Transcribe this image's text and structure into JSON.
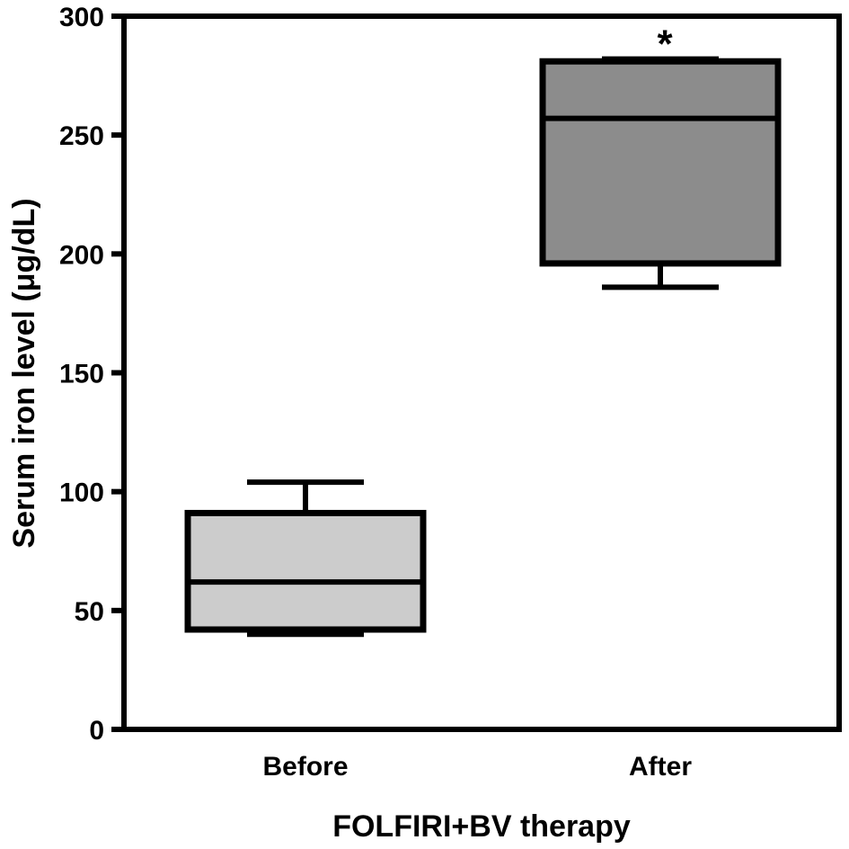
{
  "chart_data": {
    "type": "box",
    "xlabel": "FOLFIRI+BV therapy",
    "ylabel": "Serum iron level (μg/dL)",
    "ylim": [
      0,
      300
    ],
    "yticks": [
      0,
      50,
      100,
      150,
      200,
      250,
      300
    ],
    "categories": [
      "Before",
      "After"
    ],
    "boxes": [
      {
        "category": "Before",
        "min": 40,
        "q1": 42,
        "median": 62,
        "q3": 91,
        "max": 104,
        "fill": "#cccccc"
      },
      {
        "category": "After",
        "min": 186,
        "q1": 196,
        "median": 257,
        "q3": 281,
        "max": 282,
        "fill": "#8c8c8c"
      }
    ],
    "annotations": [
      {
        "category": "After",
        "text": "*"
      }
    ],
    "grid": false
  }
}
